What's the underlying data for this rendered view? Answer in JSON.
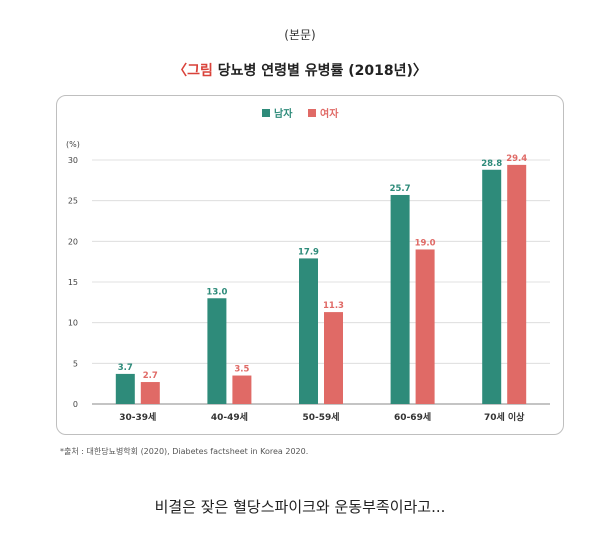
{
  "header": {
    "label": "(본문)"
  },
  "figure": {
    "title_prefix": "〈그림",
    "title_main": "당뇨병 연령별 유병률 (2018년)〉",
    "source": "*출처 : 대한당뇨병학회 (2020), Diabetes factsheet in Korea 2020."
  },
  "caption": "비결은 잦은 혈당스파이크와 운동부족이라고...",
  "colors": {
    "male": "#2e8b7a",
    "female": "#e06a66",
    "accent_red": "#d9423a"
  },
  "chart_data": {
    "type": "bar",
    "categories": [
      "30-39세",
      "40-49세",
      "50-59세",
      "60-69세",
      "70세 이상"
    ],
    "series": [
      {
        "name": "남자",
        "values": [
          3.7,
          13.0,
          17.9,
          25.7,
          28.8
        ],
        "labels": [
          "3.7",
          "13.0",
          "17.9",
          "25.7",
          "28.8"
        ]
      },
      {
        "name": "여자",
        "values": [
          2.7,
          3.5,
          11.3,
          19.0,
          29.4
        ],
        "labels": [
          "2.7",
          "3.5",
          "11.3",
          "19.0",
          "29.4"
        ]
      }
    ],
    "ylabel": "(%)",
    "ylim": [
      0,
      30
    ],
    "yticks": [
      0,
      5,
      10,
      15,
      20,
      25,
      30
    ],
    "grid": true,
    "legend_position": "top-center"
  }
}
